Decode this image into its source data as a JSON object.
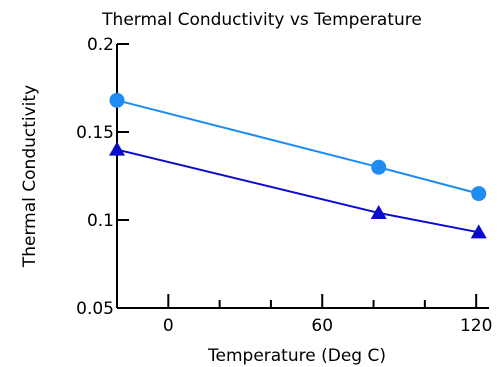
{
  "chart_data": {
    "type": "line",
    "title": "Thermal Conductivity vs Temperature",
    "xlabel": "Temperature (Deg C)",
    "ylabel": "Thermal Conductivity",
    "xlim": [
      -20,
      125
    ],
    "ylim": [
      0.05,
      0.2
    ],
    "x_ticks": [
      0,
      60,
      120
    ],
    "x_tick_labels": [
      "0",
      "60",
      "120"
    ],
    "x_minor_ticks": [
      20,
      40,
      80,
      100
    ],
    "y_ticks": [
      0.05,
      0.1,
      0.15,
      0.2
    ],
    "y_tick_labels": [
      "0.05",
      "0.1",
      "0.15",
      "0.2"
    ],
    "grid": false,
    "series": [
      {
        "marker": "circle",
        "color": "#1e8cf0",
        "points": [
          {
            "x": -20,
            "y": 0.168
          },
          {
            "x": 82,
            "y": 0.13
          },
          {
            "x": 121,
            "y": 0.115
          }
        ]
      },
      {
        "marker": "triangle",
        "color": "#0a0acc",
        "points": [
          {
            "x": -20,
            "y": 0.14
          },
          {
            "x": 82,
            "y": 0.104
          },
          {
            "x": 121,
            "y": 0.093
          }
        ]
      }
    ]
  }
}
